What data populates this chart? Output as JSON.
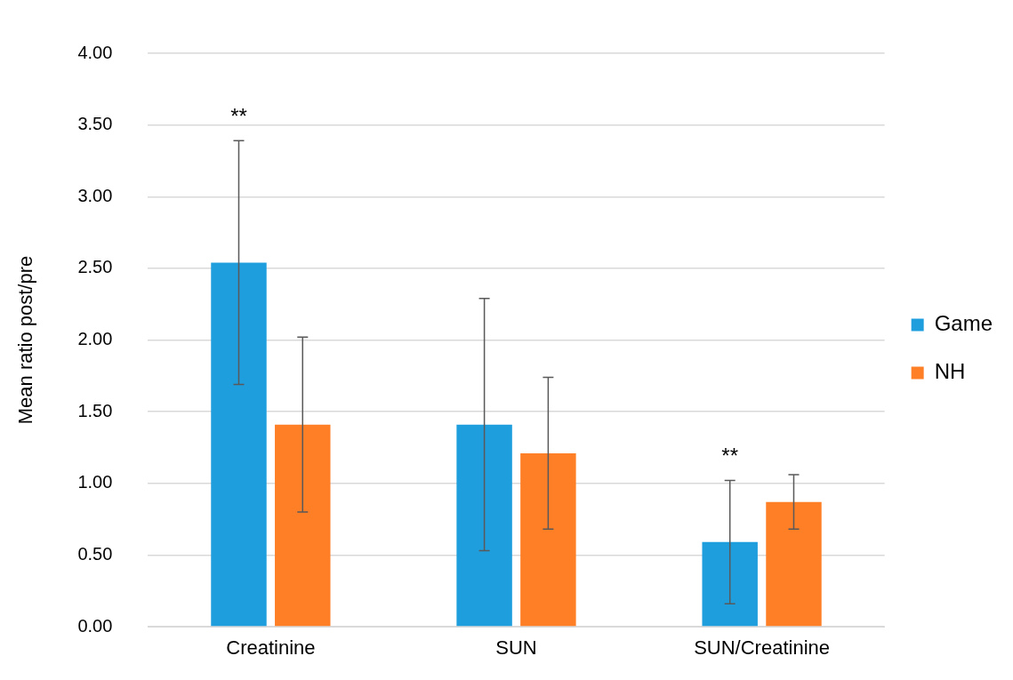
{
  "chart_data": {
    "type": "bar",
    "ylabel": "Mean ratio post/pre",
    "categories": [
      "Creatinine",
      "SUN",
      "SUN/Creatinine"
    ],
    "series": [
      {
        "name": "Game",
        "color": "#1f9ede",
        "values": [
          2.54,
          1.41,
          0.59
        ],
        "errors": [
          0.85,
          0.88,
          0.43
        ]
      },
      {
        "name": "NH",
        "color": "#ff7f27",
        "values": [
          1.41,
          1.21,
          0.87
        ],
        "errors": [
          0.61,
          0.53,
          0.19
        ]
      }
    ],
    "ylim": [
      0,
      4
    ],
    "yticks": [
      {
        "value": 0,
        "label": "0.00"
      },
      {
        "value": 0.5,
        "label": "0.50"
      },
      {
        "value": 1,
        "label": "1.00"
      },
      {
        "value": 1.5,
        "label": "1.50"
      },
      {
        "value": 2,
        "label": "2.00"
      },
      {
        "value": 2.5,
        "label": "2.50"
      },
      {
        "value": 3,
        "label": "3.00"
      },
      {
        "value": 3.5,
        "label": "3.50"
      },
      {
        "value": 4,
        "label": "4.00"
      }
    ],
    "grid": "y",
    "legend": "right",
    "annotations": [
      "**",
      "**"
    ]
  }
}
